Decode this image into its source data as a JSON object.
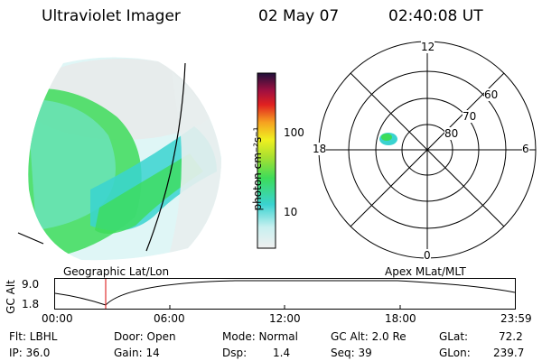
{
  "header": {
    "title": "Ultraviolet Imager",
    "date": "02 May 07",
    "time": "02:40:08 UT"
  },
  "colorbar": {
    "unit_label": "photon cm⁻²s⁻¹",
    "tick_labels": [
      "100",
      "10"
    ]
  },
  "polar_plot": {
    "mlt_labels": {
      "top": "12",
      "left": "18",
      "right": "6",
      "bottom": "0"
    },
    "lat_labels": [
      "60",
      "70",
      "80"
    ]
  },
  "track": {
    "left_caption": "Geographic Lat/Lon",
    "right_caption": "Apex MLat/MLT",
    "axis_label": "GC Alt",
    "y_ticks": [
      "9.0",
      "1.8"
    ],
    "x_ticks": [
      "00:00",
      "06:00",
      "12:00",
      "18:00",
      "23:59"
    ]
  },
  "info": {
    "flt": "Flt: LBHL",
    "ip": "IP: 36.0",
    "door": "Door: Open",
    "gain": "Gain: 14",
    "mode": "Mode: Normal",
    "dsp": "Dsp:",
    "dsp_value": "1.4",
    "gc_alt": "GC Alt: 2.0 Re",
    "seq": "Seq: 39",
    "glat": "GLat:",
    "glat_value": "72.2",
    "glon": "GLon:",
    "glon_value": "239.7"
  },
  "colors": {
    "green": "#3ddc5a",
    "cyan": "#3ad3d0",
    "light_cyan": "#c8f0f0",
    "marker": "#e03030"
  }
}
